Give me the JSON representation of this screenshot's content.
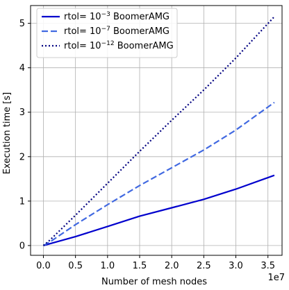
{
  "chart_data": {
    "type": "line",
    "title": "",
    "xlabel": "Number of mesh nodes",
    "ylabel": "Execution time [s]",
    "x_offset_label": "1e7",
    "xlim": [
      -0.2,
      3.72
    ],
    "ylim": [
      -0.22,
      5.4
    ],
    "x_ticks": [
      0.0,
      0.5,
      1.0,
      1.5,
      2.0,
      2.5,
      3.0,
      3.5
    ],
    "x_tick_labels": [
      "0.0",
      "0.5",
      "1.0",
      "1.5",
      "2.0",
      "2.5",
      "3.0",
      "3.5"
    ],
    "y_ticks": [
      0,
      1,
      2,
      3,
      4,
      5
    ],
    "y_tick_labels": [
      "0",
      "1",
      "2",
      "3",
      "4",
      "5"
    ],
    "grid": true,
    "legend_position": "top-left",
    "series": [
      {
        "name_main": "rtol= 10",
        "name_exp": "−3",
        "name_tail": " BoomerAMG",
        "color": "#0000cd",
        "style": "solid",
        "x": [
          0.0,
          0.1,
          0.5,
          1.0,
          1.5,
          2.0,
          2.5,
          3.0,
          3.6
        ],
        "y": [
          0.0,
          0.04,
          0.2,
          0.43,
          0.66,
          0.85,
          1.04,
          1.27,
          1.58
        ]
      },
      {
        "name_main": "rtol= 10",
        "name_exp": "−7",
        "name_tail": " BoomerAMG",
        "color": "#4169e1",
        "style": "dashed",
        "x": [
          0.0,
          0.1,
          0.5,
          1.0,
          1.5,
          2.0,
          2.5,
          3.0,
          3.6
        ],
        "y": [
          0.0,
          0.08,
          0.47,
          0.92,
          1.35,
          1.75,
          2.15,
          2.6,
          3.22
        ]
      },
      {
        "name_main": "rtol= 10",
        "name_exp": "−12",
        "name_tail": " BoomerAMG",
        "color": "#000080",
        "style": "dotted",
        "x": [
          0.0,
          0.1,
          0.5,
          1.0,
          1.5,
          2.0,
          2.5,
          3.0,
          3.6
        ],
        "y": [
          0.0,
          0.12,
          0.68,
          1.4,
          2.12,
          2.82,
          3.5,
          4.22,
          5.15
        ]
      }
    ]
  }
}
